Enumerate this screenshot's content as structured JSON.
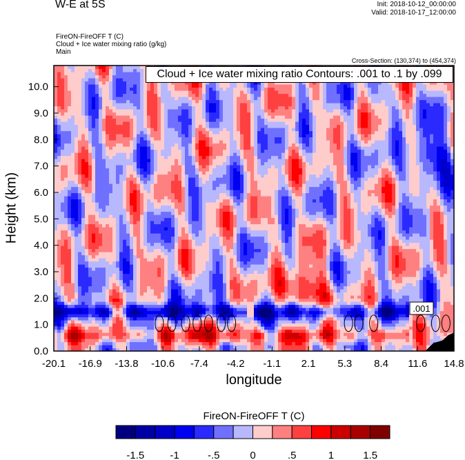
{
  "header": {
    "title": "W-E at 5S",
    "init": "Init: 2018-10-12_00:00:00",
    "valid": "Valid: 2018-10-17_12:00:00",
    "subtitle_lines": [
      "FireON-FireOFF T   (C)",
      "Cloud + Ice water mixing ratio   (g/kg)",
      "Main"
    ],
    "cross_section": "Cross-Section: (130,374) to (454,374)"
  },
  "chart_data": {
    "type": "heatmap",
    "xlabel": "longitude",
    "ylabel": "Height (km)",
    "xlim": [
      -20.1,
      14.8
    ],
    "ylim": [
      0.0,
      10.8
    ],
    "xticks": [
      "-20.1",
      "-16.9",
      "-13.8",
      "-10.6",
      "-7.4",
      "-4.2",
      "-1.1",
      "2.1",
      "5.3",
      "8.4",
      "11.6",
      "14.8"
    ],
    "yticks": [
      "0.0",
      "1.0",
      "2.0",
      "3.0",
      "4.0",
      "5.0",
      "6.0",
      "7.0",
      "8.0",
      "9.0",
      "10.0"
    ],
    "contour_legend": "Cloud + Ice water mixing ratio Contours: .001 to .1 by .099",
    "contour_label": ".001",
    "colorbar": {
      "title": "FireON-FireOFF T  (C)",
      "levels": [
        -1.75,
        -1.5,
        -1.25,
        -1,
        -0.75,
        -0.5,
        -0.25,
        0,
        0.25,
        0.5,
        0.75,
        1,
        1.25,
        1.5,
        1.75
      ],
      "labels": [
        "-1.5",
        "-1",
        "-.5",
        "0",
        ".5",
        "1",
        "1.5"
      ],
      "colors": [
        "#00007f",
        "#0000a4",
        "#0000c8",
        "#0000f0",
        "#2a2aff",
        "#7070ff",
        "#b8b8ff",
        "#ffcccc",
        "#ff8080",
        "#ff4040",
        "#ff0000",
        "#cc0000",
        "#a80000",
        "#800000"
      ]
    },
    "features": [
      {
        "desc": "cool band",
        "x_range": [
          -20.1,
          11.0
        ],
        "height_km": 1.5,
        "value": -1.3
      },
      {
        "desc": "warm band",
        "x_range": [
          -20.1,
          11.0
        ],
        "height_km": 0.6,
        "value": 0.8
      },
      {
        "desc": "warm blob",
        "x": 2.1,
        "height_km": 2.3,
        "value": 1.0
      },
      {
        "desc": "cool blob",
        "x": 13.0,
        "height_km": 7.5,
        "value": -1.0
      }
    ]
  }
}
